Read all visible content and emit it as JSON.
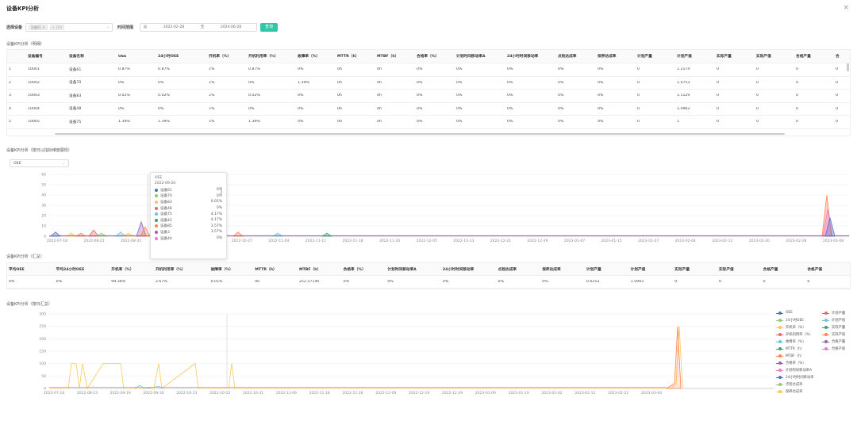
{
  "modal": {
    "title": "设备KPI分析",
    "close_icon": "close-icon"
  },
  "filter": {
    "device_label": "选择设备",
    "device_tag": "设备61 ✕",
    "device_more": "+ 104",
    "time_label": "时间范围",
    "start_date": "2022-02-28",
    "separator": "至",
    "end_date": "2024-06-28",
    "query_button": "查询"
  },
  "detail_section": {
    "title": "设备KPI分析（明细）",
    "columns": [
      "",
      "设备编号",
      "设备名称",
      "OEE",
      "24小时OEE",
      "开机率（%）",
      "开机利用率（%）",
      "故障率（%）",
      "MTTR（h）",
      "MTBF（h）",
      "合格率（%）",
      "计划时间移动率A",
      "24小时时间移动率",
      "点检达成率",
      "保养达成率",
      "计划产量",
      "计划产值",
      "实际产量",
      "实际产值",
      "合格产量",
      "合"
    ],
    "rows": [
      [
        "1",
        "10001",
        "设备61",
        "0.87%",
        "0.87%",
        "1%",
        "0.87%",
        "0%",
        "0h",
        "0h",
        "0%",
        "0%",
        "0%",
        "0%",
        "0%",
        "0",
        "1.2174",
        "0",
        "0",
        "0",
        "0"
      ],
      [
        "2",
        "10002",
        "设备70",
        "0%",
        "0%",
        "1%",
        "0%",
        "1.39%",
        "0h",
        "0h",
        "0%",
        "0%",
        "0%",
        "0%",
        "0%",
        "0",
        "1.0753",
        "0",
        "0",
        "0",
        "0"
      ],
      [
        "3",
        "10003",
        "设备83",
        "0.02%",
        "0.02%",
        "1%",
        "0.02%",
        "0%",
        "0h",
        "0h",
        "0%",
        "0%",
        "0%",
        "0%",
        "0%",
        "0",
        "1.1129",
        "0",
        "0",
        "0",
        "0"
      ],
      [
        "4",
        "10004",
        "设备48",
        "0%",
        "0%",
        "1%",
        "0%",
        "0%",
        "0h",
        "0h",
        "0%",
        "0%",
        "0%",
        "0%",
        "0%",
        "0",
        "1.0962",
        "0",
        "0",
        "0",
        "0"
      ],
      [
        "5",
        "10005",
        "设备75",
        "1.39%",
        "1.39%",
        "1%",
        "1.39%",
        "0%",
        "0h",
        "0h",
        "0%",
        "0%",
        "0%",
        "0%",
        "0%",
        "0",
        "1",
        "0",
        "0",
        "0",
        "0"
      ]
    ]
  },
  "daily_section": {
    "title": "设备KPI分析（按日以指标维度展现）",
    "metric_selected": "OEE"
  },
  "tooltip": {
    "title": "OEE",
    "date": "2022-09-20",
    "rows": [
      {
        "name": "设备61",
        "value": "0%",
        "color": "#5470c6"
      },
      {
        "name": "设备70",
        "value": "0%",
        "color": "#91cc75"
      },
      {
        "name": "设备83",
        "value": "0.01%",
        "color": "#fac858"
      },
      {
        "name": "设备48",
        "value": "0%",
        "color": "#ee6666"
      },
      {
        "name": "设备75",
        "value": "4.17%",
        "color": "#73c0de"
      },
      {
        "name": "设备42",
        "value": "4.17%",
        "color": "#3ba272"
      },
      {
        "name": "设备85",
        "value": "3.57%",
        "color": "#fc8452"
      },
      {
        "name": "设备3",
        "value": "3.57%",
        "color": "#9a60b4"
      },
      {
        "name": "设备44",
        "value": "0%",
        "color": "#ea7ccc"
      }
    ]
  },
  "summary_section": {
    "title": "设备KPI分析（汇总）",
    "columns": [
      "平均OEE",
      "平均24小时OEE",
      "开机率（%）",
      "开机利用率（%）",
      "故障率（%）",
      "MTTR（h）",
      "MTBF（h）",
      "合格率（%）",
      "计划时间移动率A",
      "24小时时间移动率",
      "点检达成率",
      "保养达成率",
      "计划产量",
      "计划产值",
      "实际产量",
      "实际产值",
      "合格产量",
      "合格产值"
    ],
    "values": [
      "0%",
      "0%",
      "99.36%",
      "2.67%",
      "0.01%",
      "0h",
      "252.5714h",
      "0%",
      "0%",
      "0%",
      "0%",
      "0%",
      "0.0253",
      "1.5993",
      "0",
      "0",
      "0",
      "0"
    ]
  },
  "daily_summary_section": {
    "title": "设备KPI分析（按日汇总）"
  },
  "chart_data": [
    {
      "type": "area",
      "title": "",
      "ylim": [
        0,
        60
      ],
      "yticks": [
        "0",
        "10",
        "20",
        "30",
        "40",
        "50",
        "60"
      ],
      "xticks": [
        "2022-07-18",
        "2022-08-21",
        "2022-08-31",
        "2022-09-",
        "2022-10-20",
        "2022-10-27",
        "2022-11-04",
        "2022-11-11",
        "2022-11-18",
        "2022-11-26",
        "2022-12-05",
        "2022-12-13",
        "2022-12-21",
        "2022-12-29",
        "2023-01-07",
        "2023-01-15",
        "2023-01-27",
        "2023-02-04",
        "2023-02-12",
        "2023-02-20",
        "2023-02-28",
        "2023-03-08"
      ],
      "grid": true
    },
    {
      "type": "line",
      "title": "",
      "ylim": [
        0,
        300
      ],
      "yticks": [
        "0",
        "50",
        "100",
        "150",
        "200",
        "250",
        "300"
      ],
      "xticks": [
        "2022-07-18",
        "2022-08-23",
        "2022-09-19",
        "2022-09-30",
        "2022-10-13",
        "2022-10-22",
        "2022-10-31",
        "2022-11-09",
        "2022-11-18",
        "2022-11-26",
        "2022-12-09",
        "2022-12-19",
        "2022-12-29",
        "2023-01-09",
        "2023-01-19",
        "2023-02-02",
        "2023-02-12",
        "2023-02-22",
        "2023-03-04"
      ],
      "legend_position": "right",
      "legend": [
        {
          "name": "OEE",
          "color": "#5470c6"
        },
        {
          "name": "24小时OEE",
          "color": "#91cc75"
        },
        {
          "name": "开机率（%）",
          "color": "#fac858"
        },
        {
          "name": "开机利用率（%）",
          "color": "#ee6666"
        },
        {
          "name": "故障率（%）",
          "color": "#73c0de"
        },
        {
          "name": "MTTR（h）",
          "color": "#3ba272"
        },
        {
          "name": "MTBF（h）",
          "color": "#fc8452"
        },
        {
          "name": "合格率（%）",
          "color": "#9a60b4"
        },
        {
          "name": "计划时间移动率A",
          "color": "#ea7ccc"
        },
        {
          "name": "24小时时间移动率",
          "color": "#5470c6"
        },
        {
          "name": "点检达成率",
          "color": "#91cc75"
        },
        {
          "name": "保养达成率",
          "color": "#fac858"
        },
        {
          "name": "计划产量",
          "color": "#ee6666"
        },
        {
          "name": "计划产值",
          "color": "#73c0de"
        },
        {
          "name": "实际产量",
          "color": "#3ba272"
        },
        {
          "name": "实际产值",
          "color": "#fc8452"
        },
        {
          "name": "合格产量",
          "color": "#9a60b4"
        },
        {
          "name": "合格产值",
          "color": "#ea7ccc"
        }
      ]
    }
  ]
}
